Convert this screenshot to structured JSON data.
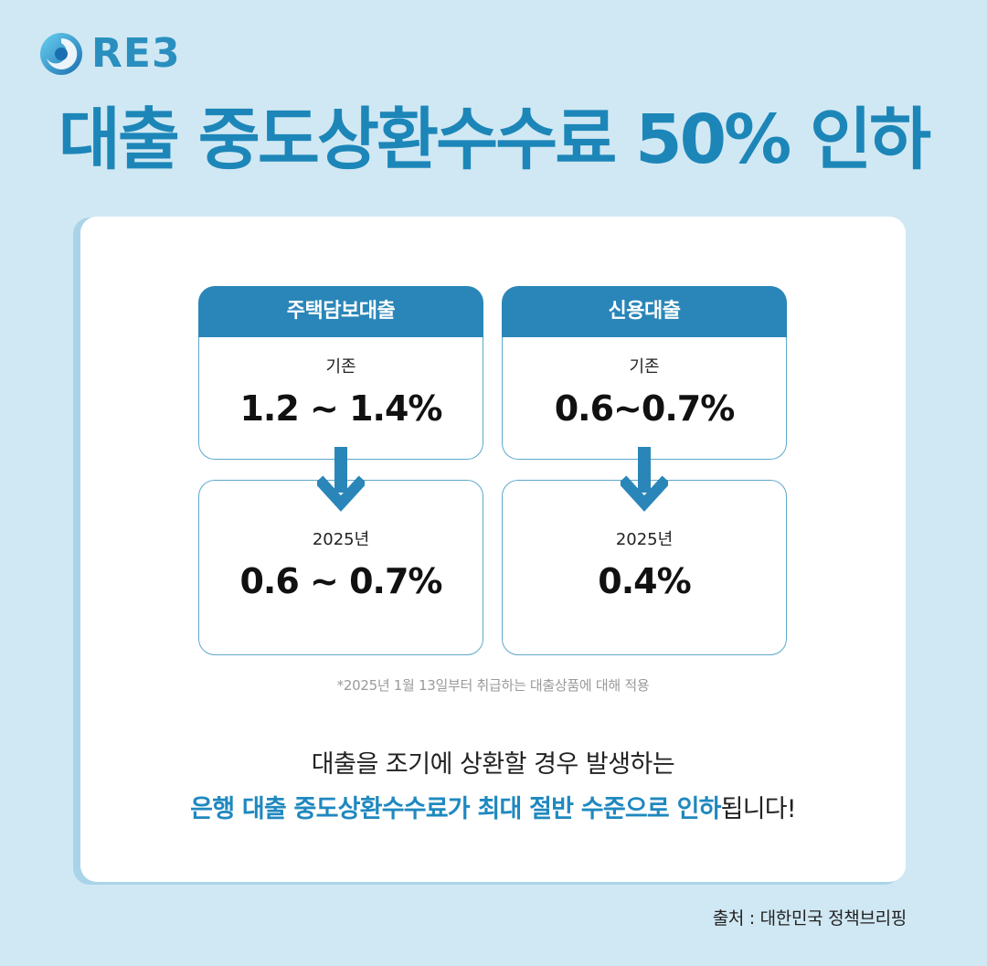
{
  "brand": {
    "logo_text": "RE3"
  },
  "headline": "대출 중도상환수수료 50% 인하",
  "columns": [
    {
      "header": "주택담보대출",
      "before_label": "기존",
      "before_value": "1.2 ~ 1.4%",
      "after_label": "2025년",
      "after_value": "0.6 ~ 0.7%"
    },
    {
      "header": "신용대출",
      "before_label": "기존",
      "before_value": "0.6~0.7%",
      "after_label": "2025년",
      "after_value": "0.4%"
    }
  ],
  "note": "*2025년 1월 13일부터 취급하는 대출상품에 대해 적용",
  "summary": {
    "line1": "대출을 조기에 상환할 경우 발생하는",
    "line2_highlight": "은행 대출 중도상환수수료가 최대 절반 수준으로 인하",
    "line2_tail": "됩니다!"
  },
  "source": "출처 : 대한민국 정책브리핑",
  "colors": {
    "accent": "#1d86b8",
    "background": "#d0e8f3",
    "header": "#2a86b8"
  }
}
